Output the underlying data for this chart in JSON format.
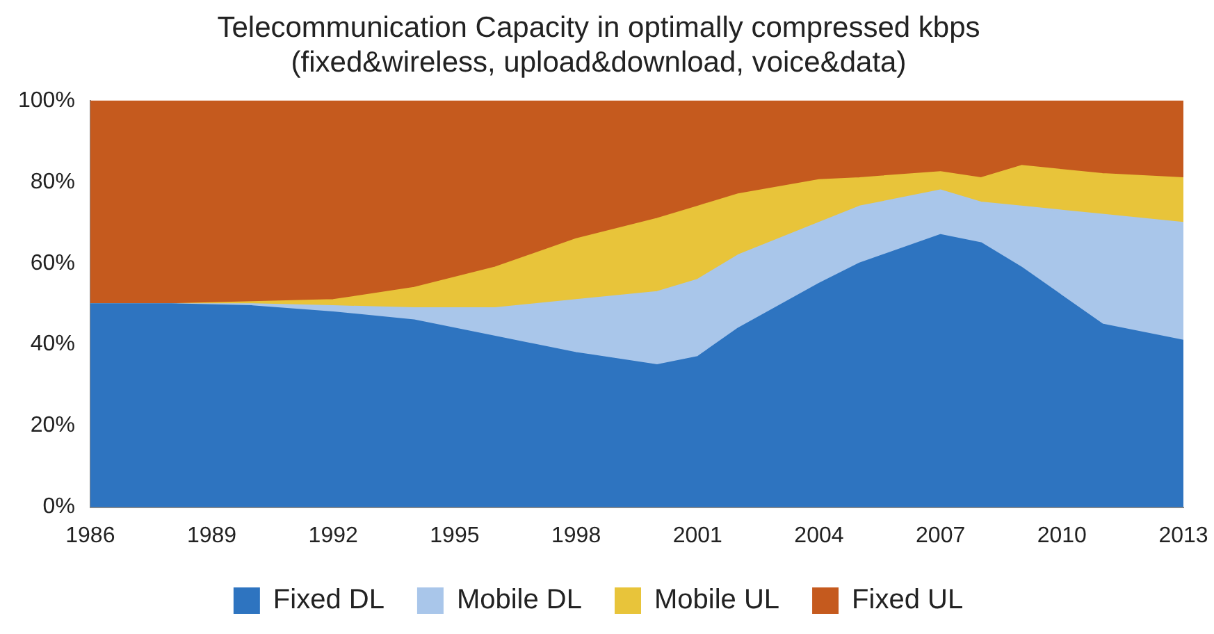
{
  "chart_data": {
    "type": "area",
    "stacked": true,
    "title": "Telecommunication Capacity in optimally compressed kbps\n(fixed&wireless, upload&download, voice&data)",
    "x": [
      1986,
      1988,
      1990,
      1992,
      1994,
      1996,
      1998,
      2000,
      2001,
      2002,
      2004,
      2005,
      2007,
      2008,
      2009,
      2010,
      2011,
      2013
    ],
    "xlim": [
      1986,
      2013
    ],
    "xticks": [
      1986,
      1989,
      1992,
      1995,
      1998,
      2001,
      2004,
      2007,
      2010,
      2013
    ],
    "ylim": [
      0,
      100
    ],
    "yticks": [
      {
        "value": 0,
        "label": "0%"
      },
      {
        "value": 20,
        "label": "20%"
      },
      {
        "value": 40,
        "label": "40%"
      },
      {
        "value": 60,
        "label": "60%"
      },
      {
        "value": 80,
        "label": "80%"
      },
      {
        "value": 100,
        "label": "100%"
      }
    ],
    "grid": false,
    "legend": "bottom",
    "marker": "none",
    "series": [
      {
        "name": "Fixed DL",
        "color": "#2e74c0",
        "values": [
          50,
          50,
          49.5,
          48,
          46,
          42,
          38,
          35,
          37,
          44,
          55,
          60,
          67,
          65,
          59,
          52,
          45,
          41
        ]
      },
      {
        "name": "Mobile DL",
        "color": "#a9c6ea",
        "values": [
          0,
          0,
          0.5,
          1.5,
          3,
          7,
          13,
          18,
          19,
          18,
          15,
          14,
          11,
          10,
          15,
          21,
          27,
          29
        ]
      },
      {
        "name": "Mobile UL",
        "color": "#e8c43a",
        "values": [
          0,
          0,
          0.5,
          1.5,
          5,
          10,
          15,
          18,
          18,
          15,
          10.5,
          7,
          4.5,
          6,
          10,
          10,
          10,
          11
        ]
      },
      {
        "name": "Fixed UL",
        "color": "#c55a1e",
        "values": [
          50,
          50,
          49.5,
          49,
          46,
          41,
          34,
          29,
          26,
          23,
          19.5,
          19,
          17.5,
          19,
          16,
          17,
          18,
          19
        ]
      }
    ]
  }
}
